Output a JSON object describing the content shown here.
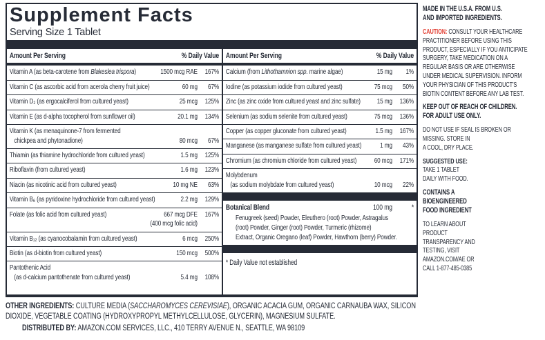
{
  "colors": {
    "ink": "#262b36",
    "caution_red": "#e13b2f"
  },
  "label": {
    "title": "Supplement Facts",
    "serving_size": "Serving Size 1 Tablet",
    "header": {
      "amount": "Amount Per Serving",
      "daily_value": "% Daily Value"
    },
    "left_rows": [
      {
        "pre": "Vitamin A (as beta-carotene from ",
        "it": "Blakeslea trispora",
        "post": ")",
        "amount": "1500 mcg RAE",
        "dv": "167%"
      },
      {
        "pre": "Vitamin C (as ascorbic acid from acerola cherry fruit juice)",
        "amount": "60 mg",
        "dv": "67%"
      },
      {
        "pre": "Vitamin D₂ (as ergocalciferol from cultured yeast)",
        "amount": "25 mcg",
        "dv": "125%"
      },
      {
        "pre": "Vitamin E (as d-alpha tocopherol from sunflower oil)",
        "amount": "20.1 mg",
        "dv": "134%"
      },
      {
        "pre": "Vitamin K (as menaquinone-7 from fermented\n   chickpea and phytonadione)",
        "amount": "80 mcg",
        "dv": "67%"
      },
      {
        "pre": "Thiamin (as thiamine hydrochloride from cultured yeast)",
        "amount": "1.5 mg",
        "dv": "125%"
      },
      {
        "pre": "Riboflavin (from cultured yeast)",
        "amount": "1.6 mg",
        "dv": "123%"
      },
      {
        "pre": "Niacin (as nicotinic acid from cultured yeast)",
        "amount": "10 mg NE",
        "dv": "63%"
      },
      {
        "pre": "Vitamin B₆ (as pyridoxine hydrochloride from cultured yeast)",
        "amount": "2.2 mg",
        "dv": "129%"
      },
      {
        "pre": "Folate (as folic acid from cultured yeast)",
        "amount": "667 mcg DFE\n(400 mcg folic acid)",
        "dv": "167%"
      },
      {
        "pre": "Vitamin B₁₂ (as cyanocobalamin from cultured yeast)",
        "amount": "6 mcg",
        "dv": "250%"
      },
      {
        "pre": "Biotin (as d-biotin from cultured yeast)",
        "amount": "150 mcg",
        "dv": "500%"
      },
      {
        "pre": "Pantothenic Acid\n   (as d-calcium pantothenate from cultured yeast)",
        "amount": "5.4 mg",
        "dv": "108%"
      }
    ],
    "right_rows": [
      {
        "pre": "Calcium (from ",
        "it": "Lithothamnion spp.",
        "post": " marine algae)",
        "amount": "15 mg",
        "dv": "1%"
      },
      {
        "pre": "Iodine (as potassium iodide from cultured yeast)",
        "amount": "75 mcg",
        "dv": "50%"
      },
      {
        "pre": "Zinc (as zinc oxide from cultured yeast and zinc sulfate)",
        "amount": "15 mg",
        "dv": "136%"
      },
      {
        "pre": "Selenium (as sodium selenite from cultured yeast)",
        "amount": "75 mcg",
        "dv": "136%"
      },
      {
        "pre": "Copper (as copper gluconate from cultured yeast)",
        "amount": "1.5 mg",
        "dv": "167%"
      },
      {
        "pre": "Manganese (as manganese sulfate from cultured yeast)",
        "amount": "1 mg",
        "dv": "43%"
      },
      {
        "pre": "Chromium (as chromium chloride from cultured yeast)",
        "amount": "60 mcg",
        "dv": "171%"
      },
      {
        "pre": "Molybdenum\n   (as sodium molybdate from cultured yeast)",
        "amount": "10 mcg",
        "dv": "22%"
      }
    ],
    "botanical": {
      "name": "Botanical Blend",
      "amount": "100 mg",
      "dv": "*",
      "ingredients": "Fenugreek (seed) Powder, Eleuthero (root) Powder, Astragalus\n(root) Powder, Ginger (root) Powder, Turmeric (rhizome)\nExtract, Organic Oregano (leaf) Powder, Hawthorn (berry) Powder."
    },
    "footnote": "* Daily Value not established"
  },
  "footer": {
    "other_ingredients": {
      "label": "OTHER INGREDIENTS:",
      "pre": " CULTURE MEDIA (",
      "italic": "SACCHAROMYCES CEREVISIAE",
      "post": "), ORGANIC ACACIA GUM, ORGANIC CARNAUBA WAX, SILICON DIOXIDE, VEGETABLE COATING (HYDROXYPROPYL METHYLCELLULOSE, GLYCERIN), MAGNESIUM SULFATE."
    },
    "distributed": {
      "label": "DISTRIBUTED BY:",
      "text": " AMAZON.COM SERVICES, LLC., 410 TERRY AVENUE N., SEATTLE, WA 98109"
    }
  },
  "side_panel": {
    "paragraphs": [
      {
        "bold": true,
        "text": "MADE IN THE U.S.A. FROM U.S.\nAND IMPORTED INGREDIENTS."
      },
      {
        "lead": "CAUTION:",
        "lead_style": "red",
        "text": " CONSULT YOUR HEALTHCARE\nPRACTITIONER BEFORE USING THIS\nPRODUCT, ESPECIALLY IF YOU ANTICIPATE\nSURGERY, TAKE MEDICATION ON A\nREGULAR BASIS OR ARE OTHERWISE\nUNDER MEDICAL SUPERVISION. INFORM\nYOUR PHYSICIAN OF THIS PRODUCT'S\nBIOTIN CONTENT BEFORE ANY LAB TEST."
      },
      {
        "bold": true,
        "text": "KEEP OUT OF REACH OF CHILDREN.\nFOR ADULT USE ONLY."
      },
      {
        "text": "DO NOT USE IF SEAL IS BROKEN OR\nMISSING. STORE IN\nA COOL, DRY PLACE."
      },
      {
        "lead": "SUGGESTED USE:",
        "lead_style": "dark",
        "text": "\nTAKE 1 TABLET\nDAILY WITH FOOD."
      },
      {
        "bold": true,
        "text": "CONTAINS A\nBIOENGINEERED\nFOOD INGREDIENT"
      },
      {
        "text": "TO LEARN ABOUT\nPRODUCT\nTRANSPARENCY AND\nTESTING, VISIT\nAMAZON.COM/AE OR\nCALL 1-877-485-0385"
      }
    ]
  }
}
